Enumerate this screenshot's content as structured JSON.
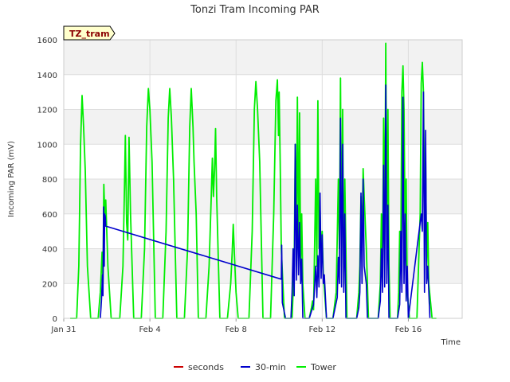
{
  "chart_data": {
    "type": "line",
    "title": "Tonzi Tram Incoming PAR",
    "xlabel": "Time",
    "ylabel": "Incoming PAR (mV)",
    "tag": "TZ_tram",
    "x_unit": "days since Jan 31",
    "xlim": [
      0,
      18.5
    ],
    "ylim": [
      0,
      1600
    ],
    "yticks": [
      0,
      200,
      400,
      600,
      800,
      1000,
      1200,
      1400,
      1600
    ],
    "xticks": [
      {
        "x": 0,
        "label": "Jan 31"
      },
      {
        "x": 4,
        "label": "Feb 4"
      },
      {
        "x": 8,
        "label": "Feb 8"
      },
      {
        "x": 12,
        "label": "Feb 12"
      },
      {
        "x": 16,
        "label": "Feb 16"
      }
    ],
    "grid": true,
    "legend_position": "bottom",
    "legend": [
      {
        "name": "seconds",
        "color": "#cc0000"
      },
      {
        "name": "30-min",
        "color": "#0000cc"
      },
      {
        "name": "Tower",
        "color": "#00ee00"
      }
    ],
    "series": [
      {
        "name": "seconds",
        "color": "#cc0000",
        "points": []
      },
      {
        "name": "30-min",
        "color": "#0000cc",
        "points": [
          [
            1.7,
            0
          ],
          [
            1.75,
            100
          ],
          [
            1.8,
            250
          ],
          [
            1.82,
            130
          ],
          [
            1.85,
            640
          ],
          [
            1.88,
            300
          ],
          [
            1.9,
            600
          ],
          [
            1.93,
            580
          ],
          [
            1.95,
            530
          ],
          [
            10.1,
            225
          ],
          [
            10.12,
            420
          ],
          [
            10.15,
            90
          ],
          [
            10.3,
            0
          ],
          [
            10.55,
            0
          ],
          [
            10.6,
            150
          ],
          [
            10.65,
            400
          ],
          [
            10.7,
            130
          ],
          [
            10.75,
            1000
          ],
          [
            10.8,
            220
          ],
          [
            10.85,
            650
          ],
          [
            10.9,
            250
          ],
          [
            10.95,
            550
          ],
          [
            11.0,
            200
          ],
          [
            11.05,
            340
          ],
          [
            11.1,
            0
          ],
          [
            11.4,
            0
          ],
          [
            11.6,
            80
          ],
          [
            11.7,
            300
          ],
          [
            11.75,
            120
          ],
          [
            11.8,
            360
          ],
          [
            11.85,
            180
          ],
          [
            11.9,
            720
          ],
          [
            11.95,
            230
          ],
          [
            12.0,
            480
          ],
          [
            12.05,
            200
          ],
          [
            12.1,
            250
          ],
          [
            12.2,
            0
          ],
          [
            12.5,
            0
          ],
          [
            12.7,
            120
          ],
          [
            12.75,
            350
          ],
          [
            12.8,
            200
          ],
          [
            12.85,
            1150
          ],
          [
            12.9,
            180
          ],
          [
            12.95,
            1000
          ],
          [
            13.0,
            150
          ],
          [
            13.05,
            600
          ],
          [
            13.1,
            0
          ],
          [
            13.6,
            0
          ],
          [
            13.7,
            60
          ],
          [
            13.75,
            150
          ],
          [
            13.8,
            720
          ],
          [
            13.85,
            200
          ],
          [
            13.9,
            800
          ],
          [
            13.95,
            300
          ],
          [
            14.05,
            200
          ],
          [
            14.1,
            0
          ],
          [
            14.6,
            0
          ],
          [
            14.7,
            100
          ],
          [
            14.75,
            400
          ],
          [
            14.8,
            150
          ],
          [
            14.85,
            880
          ],
          [
            14.9,
            180
          ],
          [
            14.95,
            1340
          ],
          [
            15.0,
            200
          ],
          [
            15.05,
            650
          ],
          [
            15.1,
            0
          ],
          [
            15.5,
            0
          ],
          [
            15.6,
            80
          ],
          [
            15.65,
            500
          ],
          [
            15.7,
            150
          ],
          [
            15.75,
            1270
          ],
          [
            15.8,
            200
          ],
          [
            15.85,
            600
          ],
          [
            15.9,
            100
          ],
          [
            15.95,
            300
          ],
          [
            16.0,
            0
          ],
          [
            16.3,
            300
          ],
          [
            16.6,
            600
          ],
          [
            16.65,
            500
          ],
          [
            16.7,
            1300
          ],
          [
            16.75,
            150
          ],
          [
            16.8,
            1080
          ],
          [
            16.85,
            200
          ],
          [
            16.9,
            300
          ],
          [
            17.0,
            0
          ]
        ]
      },
      {
        "name": "Tower",
        "color": "#00ee00",
        "points": [
          [
            0.3,
            0
          ],
          [
            0.6,
            0
          ],
          [
            0.7,
            300
          ],
          [
            0.78,
            1000
          ],
          [
            0.85,
            1280
          ],
          [
            0.92,
            1100
          ],
          [
            1.0,
            850
          ],
          [
            1.1,
            300
          ],
          [
            1.25,
            0
          ],
          [
            1.6,
            0
          ],
          [
            1.7,
            150
          ],
          [
            1.78,
            380
          ],
          [
            1.82,
            200
          ],
          [
            1.86,
            770
          ],
          [
            1.9,
            600
          ],
          [
            1.95,
            680
          ],
          [
            2.05,
            300
          ],
          [
            2.2,
            0
          ],
          [
            2.6,
            0
          ],
          [
            2.75,
            300
          ],
          [
            2.82,
            750
          ],
          [
            2.86,
            1050
          ],
          [
            2.92,
            550
          ],
          [
            2.97,
            450
          ],
          [
            3.03,
            1040
          ],
          [
            3.1,
            600
          ],
          [
            3.25,
            0
          ],
          [
            3.6,
            0
          ],
          [
            3.75,
            400
          ],
          [
            3.85,
            1100
          ],
          [
            3.93,
            1320
          ],
          [
            4.0,
            1200
          ],
          [
            4.1,
            900
          ],
          [
            4.25,
            0
          ],
          [
            4.6,
            0
          ],
          [
            4.75,
            500
          ],
          [
            4.85,
            1150
          ],
          [
            4.92,
            1320
          ],
          [
            5.0,
            1150
          ],
          [
            5.1,
            800
          ],
          [
            5.25,
            0
          ],
          [
            5.6,
            0
          ],
          [
            5.75,
            400
          ],
          [
            5.85,
            1100
          ],
          [
            5.92,
            1320
          ],
          [
            6.0,
            1100
          ],
          [
            6.05,
            900
          ],
          [
            6.15,
            600
          ],
          [
            6.25,
            0
          ],
          [
            6.6,
            0
          ],
          [
            6.75,
            300
          ],
          [
            6.85,
            700
          ],
          [
            6.9,
            920
          ],
          [
            6.95,
            700
          ],
          [
            7.0,
            850
          ],
          [
            7.05,
            1090
          ],
          [
            7.1,
            700
          ],
          [
            7.25,
            0
          ],
          [
            7.6,
            0
          ],
          [
            7.75,
            200
          ],
          [
            7.82,
            380
          ],
          [
            7.87,
            540
          ],
          [
            7.93,
            350
          ],
          [
            8.0,
            150
          ],
          [
            8.1,
            0
          ],
          [
            8.6,
            0
          ],
          [
            8.75,
            500
          ],
          [
            8.85,
            1200
          ],
          [
            8.92,
            1360
          ],
          [
            9.0,
            1200
          ],
          [
            9.1,
            900
          ],
          [
            9.25,
            0
          ],
          [
            9.6,
            0
          ],
          [
            9.75,
            600
          ],
          [
            9.85,
            1250
          ],
          [
            9.92,
            1370
          ],
          [
            9.97,
            1050
          ],
          [
            10.0,
            1300
          ],
          [
            10.05,
            900
          ],
          [
            10.1,
            400
          ],
          [
            10.25,
            0
          ],
          [
            10.6,
            0
          ],
          [
            10.7,
            300
          ],
          [
            10.75,
            1000
          ],
          [
            10.8,
            500
          ],
          [
            10.85,
            1270
          ],
          [
            10.9,
            400
          ],
          [
            10.95,
            1180
          ],
          [
            11.0,
            300
          ],
          [
            11.05,
            600
          ],
          [
            11.1,
            200
          ],
          [
            11.2,
            0
          ],
          [
            11.4,
            0
          ],
          [
            11.5,
            60
          ],
          [
            11.55,
            100
          ],
          [
            11.6,
            50
          ],
          [
            11.7,
            800
          ],
          [
            11.75,
            300
          ],
          [
            11.8,
            1250
          ],
          [
            11.85,
            400
          ],
          [
            11.9,
            620
          ],
          [
            11.95,
            350
          ],
          [
            12.0,
            500
          ],
          [
            12.05,
            250
          ],
          [
            12.2,
            0
          ],
          [
            12.5,
            0
          ],
          [
            12.65,
            150
          ],
          [
            12.75,
            800
          ],
          [
            12.8,
            400
          ],
          [
            12.85,
            1380
          ],
          [
            12.9,
            300
          ],
          [
            12.95,
            1200
          ],
          [
            13.0,
            200
          ],
          [
            13.05,
            800
          ],
          [
            13.15,
            0
          ],
          [
            13.6,
            0
          ],
          [
            13.7,
            150
          ],
          [
            13.75,
            300
          ],
          [
            13.8,
            700
          ],
          [
            13.85,
            400
          ],
          [
            13.9,
            860
          ],
          [
            13.95,
            700
          ],
          [
            14.05,
            400
          ],
          [
            14.15,
            0
          ],
          [
            14.6,
            0
          ],
          [
            14.7,
            200
          ],
          [
            14.75,
            600
          ],
          [
            14.8,
            300
          ],
          [
            14.85,
            1150
          ],
          [
            14.9,
            400
          ],
          [
            14.95,
            1580
          ],
          [
            15.0,
            500
          ],
          [
            15.05,
            1200
          ],
          [
            15.1,
            300
          ],
          [
            15.15,
            0
          ],
          [
            15.5,
            0
          ],
          [
            15.55,
            150
          ],
          [
            15.6,
            500
          ],
          [
            15.65,
            400
          ],
          [
            15.7,
            1300
          ],
          [
            15.75,
            1450
          ],
          [
            15.8,
            1200
          ],
          [
            15.85,
            500
          ],
          [
            15.9,
            800
          ],
          [
            15.95,
            150
          ],
          [
            16.05,
            0
          ],
          [
            16.4,
            0
          ],
          [
            16.5,
            400
          ],
          [
            16.55,
            600
          ],
          [
            16.6,
            1350
          ],
          [
            16.65,
            1470
          ],
          [
            16.7,
            1300
          ],
          [
            16.75,
            700
          ],
          [
            16.8,
            900
          ],
          [
            16.85,
            300
          ],
          [
            16.9,
            550
          ],
          [
            16.95,
            200
          ],
          [
            17.1,
            0
          ],
          [
            17.3,
            0
          ]
        ]
      }
    ]
  }
}
